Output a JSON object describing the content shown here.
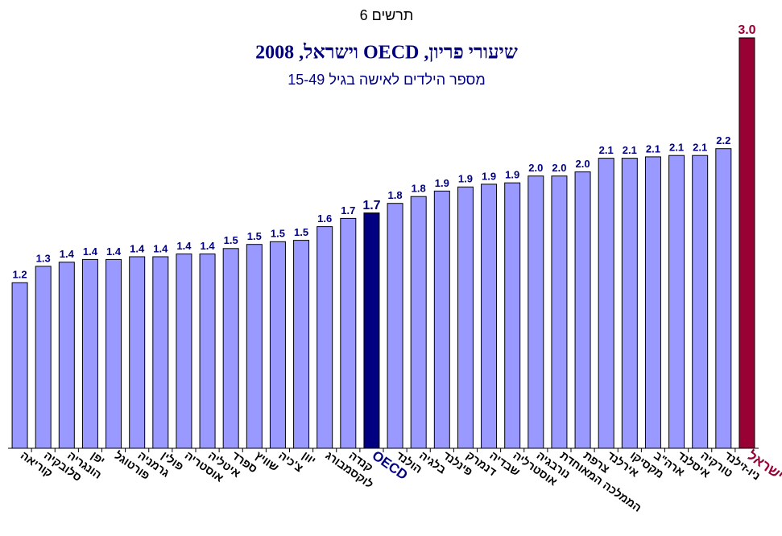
{
  "chart_data": {
    "type": "bar",
    "title": "שיעורי פריון, OECD וישראל, 2008",
    "figure_label": "תרשים 6",
    "subtitle": "מספר הילדים לאישה בגיל 15-49",
    "categories": [
      "קוריאה",
      "סלובקיה",
      "הונגריה",
      "יפן",
      "פורטוגל",
      "גרמניה",
      "פולין",
      "אוסטריה",
      "איטליה",
      "ספרד",
      "שוויץ",
      "צ'כיה",
      "יוון",
      "לוקסמבורג",
      "קנדה",
      "OECD",
      "הולנד",
      "בלגיה",
      "פינלנד",
      "דנמרק",
      "שבדיה",
      "אוסטרליה",
      "נורבגיה",
      "הממלכה המאוחדת",
      "צרפת",
      "אירלנד",
      "מקסיקו",
      "ארה\"ב",
      "איסלנד",
      "טורקיה",
      "ניו-זילנד",
      "ישראל"
    ],
    "values": [
      1.21,
      1.33,
      1.36,
      1.38,
      1.38,
      1.4,
      1.4,
      1.42,
      1.42,
      1.46,
      1.49,
      1.51,
      1.52,
      1.62,
      1.68,
      1.72,
      1.79,
      1.84,
      1.88,
      1.91,
      1.93,
      1.94,
      1.99,
      1.99,
      2.02,
      2.12,
      2.12,
      2.13,
      2.14,
      2.14,
      2.19,
      3.0
    ],
    "value_labels": [
      "1.2",
      "1.3",
      "1.4",
      "1.4",
      "1.4",
      "1.4",
      "1.4",
      "1.4",
      "1.4",
      "1.5",
      "1.5",
      "1.5",
      "1.5",
      "1.6",
      "1.7",
      "1.7",
      "1.8",
      "1.8",
      "1.9",
      "1.9",
      "1.9",
      "1.9",
      "2.0",
      "2.0",
      "2.0",
      "2.1",
      "2.1",
      "2.1",
      "2.1",
      "2.1",
      "2.2",
      "3.0"
    ],
    "color": "#9999ff",
    "bar_colors": [
      "#9999ff",
      "#9999ff",
      "#9999ff",
      "#9999ff",
      "#9999ff",
      "#9999ff",
      "#9999ff",
      "#9999ff",
      "#9999ff",
      "#9999ff",
      "#9999ff",
      "#9999ff",
      "#9999ff",
      "#9999ff",
      "#9999ff",
      "#000080",
      "#9999ff",
      "#9999ff",
      "#9999ff",
      "#9999ff",
      "#9999ff",
      "#9999ff",
      "#9999ff",
      "#9999ff",
      "#9999ff",
      "#9999ff",
      "#9999ff",
      "#9999ff",
      "#9999ff",
      "#9999ff",
      "#9999ff",
      "#990033"
    ],
    "ylim": [
      0,
      3
    ]
  }
}
